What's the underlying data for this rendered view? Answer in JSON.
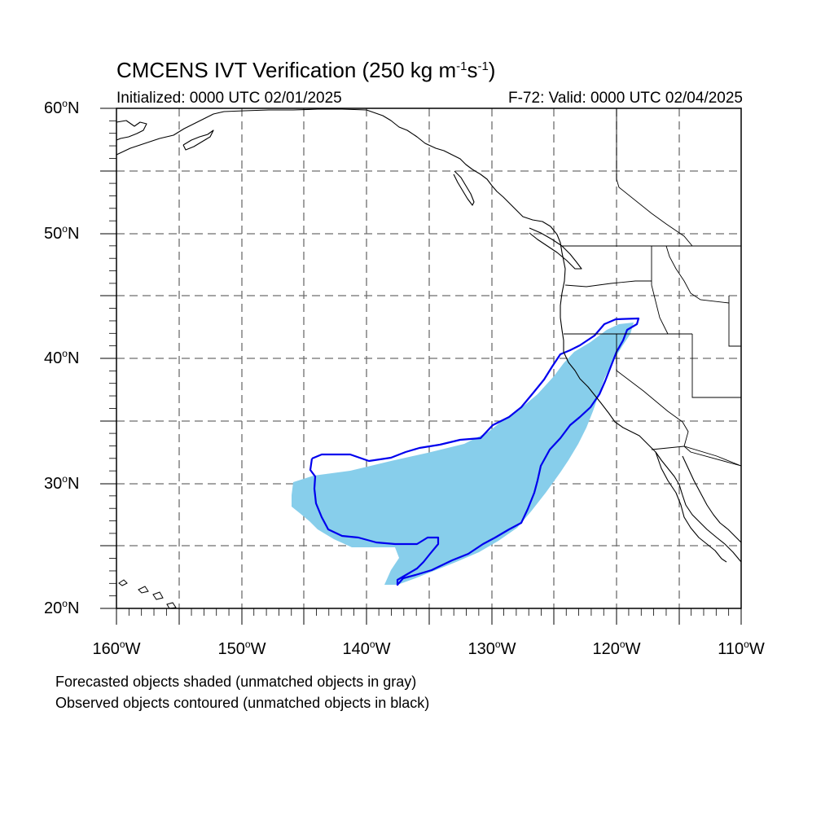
{
  "title": {
    "main": "CMCENS IVT Verification (250 kg m",
    "exp1": "-1",
    "mid": "s",
    "exp2": "-1",
    "end": ")"
  },
  "subtitle": {
    "left": "Initialized: 0000 UTC 02/01/2025",
    "right": "F-72: Valid: 0000 UTC 02/04/2025"
  },
  "axes": {
    "lat_labels": [
      {
        "value": "60",
        "hemisphere": "N"
      },
      {
        "value": "50",
        "hemisphere": "N"
      },
      {
        "value": "40",
        "hemisphere": "N"
      },
      {
        "value": "30",
        "hemisphere": "N"
      },
      {
        "value": "20",
        "hemisphere": "N"
      }
    ],
    "lon_labels": [
      {
        "value": "160",
        "hemisphere": "W"
      },
      {
        "value": "150",
        "hemisphere": "W"
      },
      {
        "value": "140",
        "hemisphere": "W"
      },
      {
        "value": "130",
        "hemisphere": "W"
      },
      {
        "value": "120",
        "hemisphere": "W"
      },
      {
        "value": "110",
        "hemisphere": "W"
      }
    ],
    "lat_range": [
      20,
      60
    ],
    "lon_range": [
      -160,
      -110
    ],
    "grid_spacing_deg": 5,
    "grid_style": "dashed"
  },
  "colors": {
    "forecast_fill": "#87CEEB",
    "observed_contour": "#0000EE",
    "coast": "#000000",
    "grid": "#6e6e6e"
  },
  "footnotes": {
    "line1": "Forecasted objects shaded (unmatched objects in gray)",
    "line2": "Observed objects contoured (unmatched objects in black)"
  }
}
